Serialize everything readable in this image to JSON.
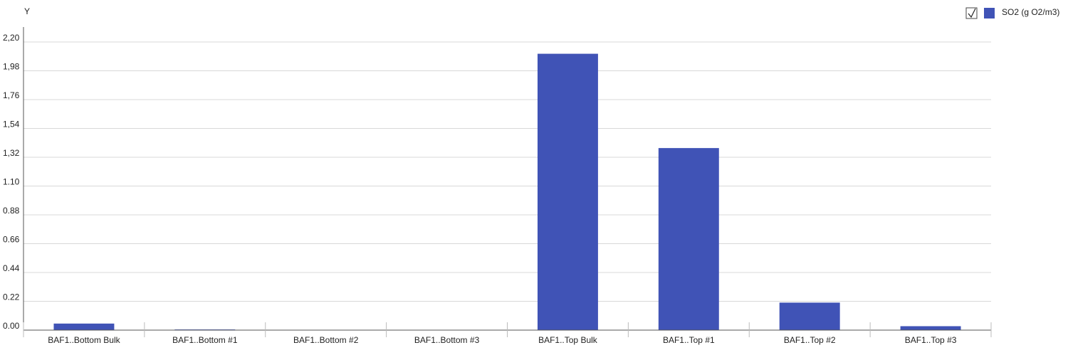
{
  "chart_data": {
    "type": "bar",
    "y_axis_label": "Y",
    "categories": [
      "BAF1..Bottom Bulk",
      "BAF1..Bottom #1",
      "BAF1..Bottom #2",
      "BAF1..Bottom #3",
      "BAF1..Top Bulk",
      "BAF1..Top #1",
      "BAF1..Top #2",
      "BAF1..Top #3"
    ],
    "series": [
      {
        "name": "SO2 (g O2/m3)",
        "color": "#4053b6",
        "values": [
          0.05,
          0.005,
          0,
          0,
          2.11,
          1.39,
          0.21,
          0.03
        ]
      }
    ],
    "ylim": [
      0,
      2.2
    ],
    "yticks": [
      {
        "value": 0,
        "label": "0.00"
      },
      {
        "value": 0.22,
        "label": "0.22"
      },
      {
        "value": 0.44,
        "label": "0.44"
      },
      {
        "value": 0.66,
        "label": "0.66"
      },
      {
        "value": 0.88,
        "label": "0.88"
      },
      {
        "value": 1.1,
        "label": "1.10"
      },
      {
        "value": 1.32,
        "label": "1,32"
      },
      {
        "value": 1.54,
        "label": "1,54"
      },
      {
        "value": 1.76,
        "label": "1,76"
      },
      {
        "value": 1.98,
        "label": "1,98"
      },
      {
        "value": 2.2,
        "label": "2,20"
      }
    ],
    "grid": true,
    "legend_position": "top-right"
  }
}
